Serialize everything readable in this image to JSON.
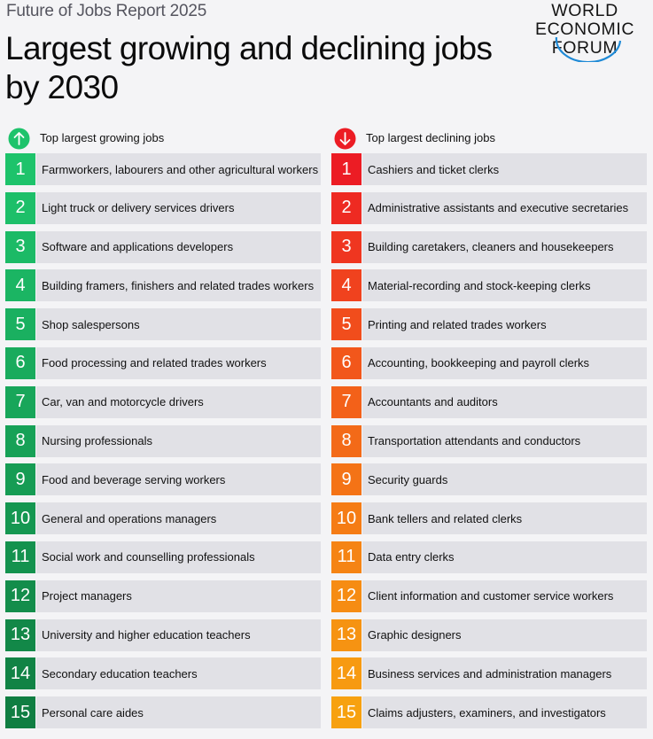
{
  "header": {
    "subtitle": "Future of Jobs Report 2025",
    "title": "Largest growing and declining jobs by 2030"
  },
  "logo": {
    "lines": [
      "WORLD",
      "ECONOMIC",
      "FORUM"
    ]
  },
  "growing": {
    "heading": "Top largest growing jobs",
    "icon": "arrow-up-icon",
    "badge_color": "#1ec36b",
    "colors": [
      "#1ec36b",
      "#1dbf69",
      "#1cba66",
      "#1bb563",
      "#1ab060",
      "#19ab5d",
      "#18a65a",
      "#17a157",
      "#169c54",
      "#159751",
      "#14924e",
      "#138d4b",
      "#128848",
      "#118345",
      "#107e42"
    ],
    "items": [
      {
        "rank": "1",
        "label": "Farmworkers, labourers and other agricultural workers"
      },
      {
        "rank": "2",
        "label": "Light truck or delivery services drivers"
      },
      {
        "rank": "3",
        "label": "Software and applications developers"
      },
      {
        "rank": "4",
        "label": "Building framers, finishers and related trades workers"
      },
      {
        "rank": "5",
        "label": "Shop salespersons"
      },
      {
        "rank": "6",
        "label": "Food processing and related trades workers"
      },
      {
        "rank": "7",
        "label": "Car, van and motorcycle drivers"
      },
      {
        "rank": "8",
        "label": "Nursing professionals"
      },
      {
        "rank": "9",
        "label": "Food and beverage serving workers"
      },
      {
        "rank": "10",
        "label": "General and operations managers"
      },
      {
        "rank": "11",
        "label": "Social work and counselling professionals"
      },
      {
        "rank": "12",
        "label": "Project managers"
      },
      {
        "rank": "13",
        "label": "University and higher education teachers"
      },
      {
        "rank": "14",
        "label": "Secondary education teachers"
      },
      {
        "rank": "15",
        "label": "Personal care aides"
      }
    ]
  },
  "declining": {
    "heading": "Top largest declining jobs",
    "icon": "arrow-down-icon",
    "badge_color": "#ec1c24",
    "colors": [
      "#ec1c24",
      "#ee2a22",
      "#ef3620",
      "#f0421e",
      "#f14d1c",
      "#f2571b",
      "#f36119",
      "#f36a18",
      "#f47316",
      "#f57c15",
      "#f58414",
      "#f68c13",
      "#f69312",
      "#f79a11",
      "#f7a110"
    ],
    "items": [
      {
        "rank": "1",
        "label": "Cashiers and ticket clerks"
      },
      {
        "rank": "2",
        "label": "Administrative assistants and executive secretaries"
      },
      {
        "rank": "3",
        "label": "Building caretakers, cleaners and housekeepers"
      },
      {
        "rank": "4",
        "label": "Material-recording and stock-keeping clerks"
      },
      {
        "rank": "5",
        "label": "Printing and related trades workers"
      },
      {
        "rank": "6",
        "label": "Accounting, bookkeeping and payroll clerks"
      },
      {
        "rank": "7",
        "label": "Accountants and auditors"
      },
      {
        "rank": "8",
        "label": "Transportation attendants and conductors"
      },
      {
        "rank": "9",
        "label": "Security guards"
      },
      {
        "rank": "10",
        "label": "Bank tellers and related clerks"
      },
      {
        "rank": "11",
        "label": "Data entry clerks"
      },
      {
        "rank": "12",
        "label": "Client information and customer service workers"
      },
      {
        "rank": "13",
        "label": "Graphic designers"
      },
      {
        "rank": "14",
        "label": "Business services and administration managers"
      },
      {
        "rank": "15",
        "label": "Claims adjusters, examiners, and investigators"
      }
    ]
  }
}
